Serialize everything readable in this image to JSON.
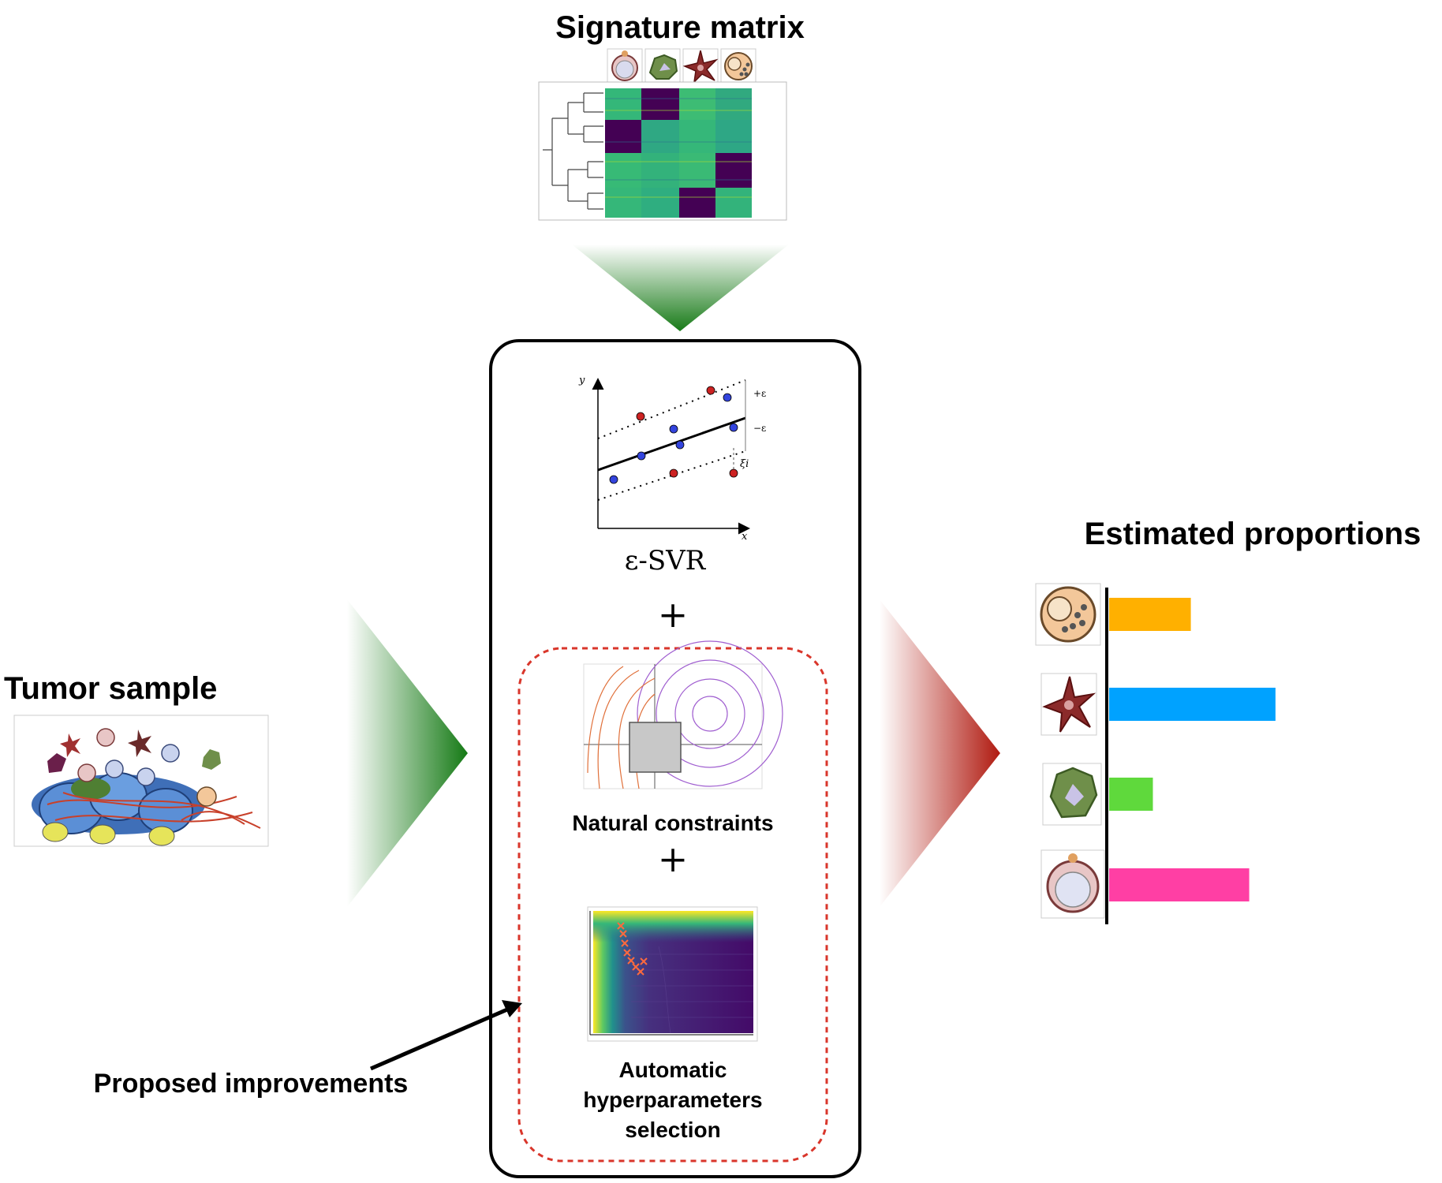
{
  "titles": {
    "signature_matrix": "Signature matrix",
    "tumor_sample": "Tumor sample",
    "estimated_proportions": "Estimated proportions",
    "proposed_improvements": "Proposed improvements"
  },
  "method": {
    "svr_label": "ε-SVR",
    "plus": "+",
    "natural_constraints": "Natural constraints",
    "hyperparam_lines": [
      "Automatic",
      "hyperparameters",
      "selection"
    ]
  },
  "svr_plot": {
    "axis_y": "y",
    "axis_x": "x",
    "plus_eps": "+ε",
    "minus_eps": "−ε",
    "xi": "ξi"
  },
  "cell_types": [
    "plasma-cell-icon",
    "macrophage-icon",
    "dendritic-cell-icon",
    "lymphocyte-icon"
  ],
  "chart_data": {
    "type": "bar",
    "orientation": "horizontal",
    "categories": [
      "granulocyte",
      "dendritic-cell",
      "macrophage",
      "lymphocyte"
    ],
    "values": [
      0.28,
      0.57,
      0.15,
      0.48
    ],
    "colors": [
      "#FFB000",
      "#00A2FF",
      "#5FD93C",
      "#FF3FA4"
    ],
    "xlim": [
      0,
      1
    ]
  },
  "colors": {
    "green_arrow": "#1a7a1a",
    "red_arrow": "#b22222",
    "dashed_box": "#d9362b",
    "heatmap_green": "#34b779",
    "heatmap_purple": "#440154"
  }
}
